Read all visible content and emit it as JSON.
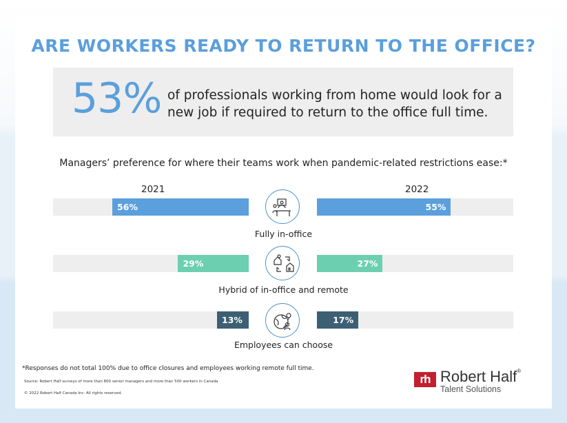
{
  "title": "ARE WORKERS READY TO RETURN TO THE OFFICE?",
  "stat": {
    "value": "53%",
    "text": "of professionals working from home would look for a new job if required to return to the office full time."
  },
  "subtitle": "Managers’ preference for where their teams work when pandemic-related restrictions ease:*",
  "chart_data": {
    "type": "bar",
    "years": [
      "2021",
      "2022"
    ],
    "categories": [
      "Fully in-office",
      "Hybrid of in-office and remote",
      "Employees can choose"
    ],
    "series": [
      {
        "name": "2021",
        "values": [
          56,
          29,
          13
        ],
        "labels": [
          "56%",
          "29%",
          "13%"
        ]
      },
      {
        "name": "2022",
        "values": [
          55,
          27,
          17
        ],
        "labels": [
          "55%",
          "27%",
          "17%"
        ]
      }
    ],
    "colors": [
      "#5b9fdc",
      "#6ccfb0",
      "#3d5f73"
    ],
    "icons": [
      "desk-worker-icon",
      "office-home-cycle-icon",
      "globe-person-icon"
    ],
    "ylim": [
      0,
      100
    ]
  },
  "footnote": "*Responses do not total 100% due to office closures and employees working remote full time.",
  "source": "Source: Robert Half surveys of more than 800 senior managers and more than 500 workers in Canada",
  "copyright": "© 2022 Robert Half Canada Inc. All rights reserved.",
  "logo": {
    "mark": "rh",
    "name": "Robert Half",
    "registered": "®",
    "sub": "Talent Solutions"
  }
}
